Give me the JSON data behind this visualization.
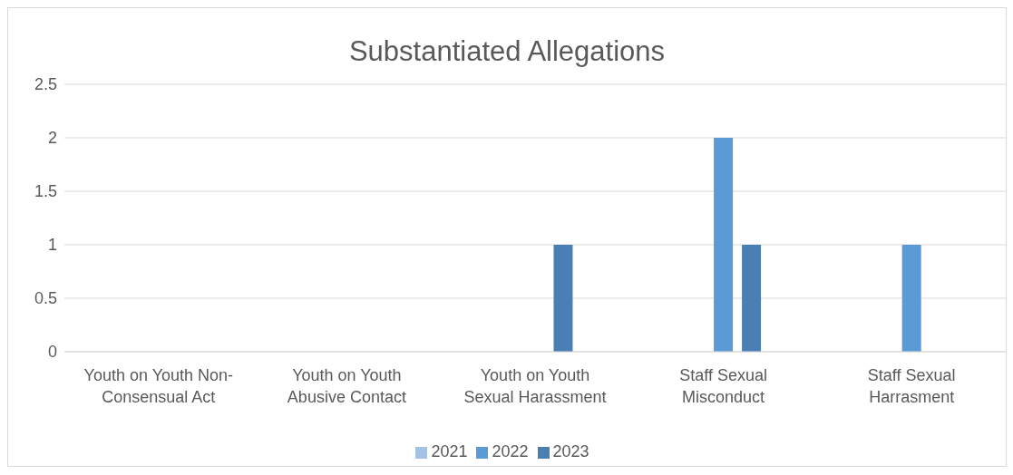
{
  "chart_data": {
    "type": "bar",
    "title": "Substantiated Allegations",
    "categories": [
      "Youth on Youth Non-Consensual Act",
      "Youth on Youth Abusive Contact",
      "Youth on Youth Sexual Harassment",
      "Staff Sexual Misconduct",
      "Staff Sexual Harrasment"
    ],
    "series": [
      {
        "name": "2021",
        "color": "#a5c2e6",
        "values": [
          0,
          0,
          0,
          0,
          0
        ]
      },
      {
        "name": "2022",
        "color": "#5b9bd5",
        "values": [
          0,
          0,
          0,
          2,
          1
        ]
      },
      {
        "name": "2023",
        "color": "#4a7fb3",
        "values": [
          0,
          0,
          1,
          1,
          0
        ]
      }
    ],
    "ylim": [
      0,
      2.5
    ],
    "yticks": [
      0,
      0.5,
      1,
      1.5,
      2,
      2.5
    ],
    "grid": "y",
    "legend": "bottom"
  }
}
